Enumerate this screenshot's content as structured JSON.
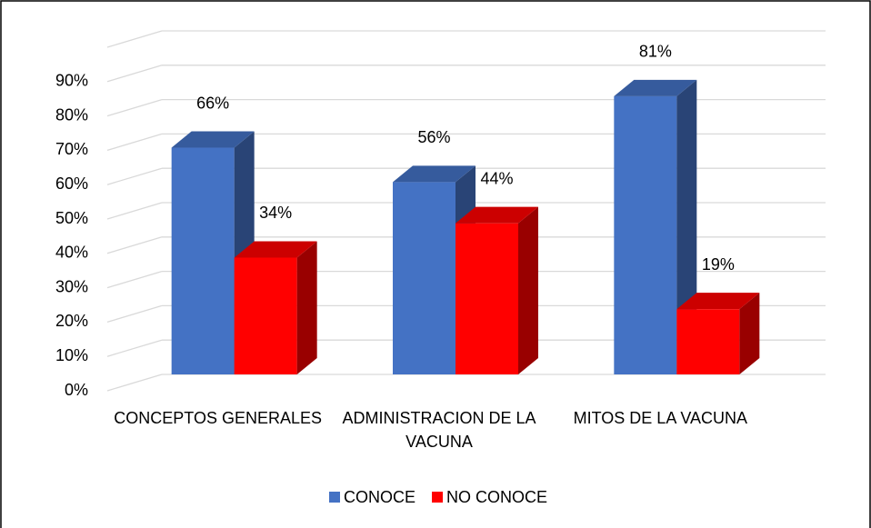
{
  "chart_data": {
    "type": "bar3d",
    "categories": [
      "CONCEPTOS GENERALES",
      "ADMINISTRACION DE LA VACUNA",
      "MITOS DE LA VACUNA"
    ],
    "series": [
      {
        "name": "CONOCE",
        "color": "#4472c4",
        "values": [
          66,
          56,
          81
        ],
        "value_labels": [
          "66%",
          "56%",
          "81%"
        ]
      },
      {
        "name": "NO CONOCE",
        "color": "#ff0000",
        "values": [
          34,
          44,
          19
        ],
        "value_labels": [
          "34%",
          "44%",
          "19%"
        ]
      }
    ],
    "ylim": [
      0,
      100
    ],
    "yticks": [
      {
        "value": 0,
        "label": "0%"
      },
      {
        "value": 10,
        "label": "10%"
      },
      {
        "value": 20,
        "label": "20%"
      },
      {
        "value": 30,
        "label": "30%"
      },
      {
        "value": 40,
        "label": "40%"
      },
      {
        "value": 50,
        "label": "50%"
      },
      {
        "value": 60,
        "label": "60%"
      },
      {
        "value": 70,
        "label": "70%"
      },
      {
        "value": 80,
        "label": "80%"
      },
      {
        "value": 90,
        "label": "90%"
      }
    ],
    "grid": true,
    "legend": "bottom"
  }
}
